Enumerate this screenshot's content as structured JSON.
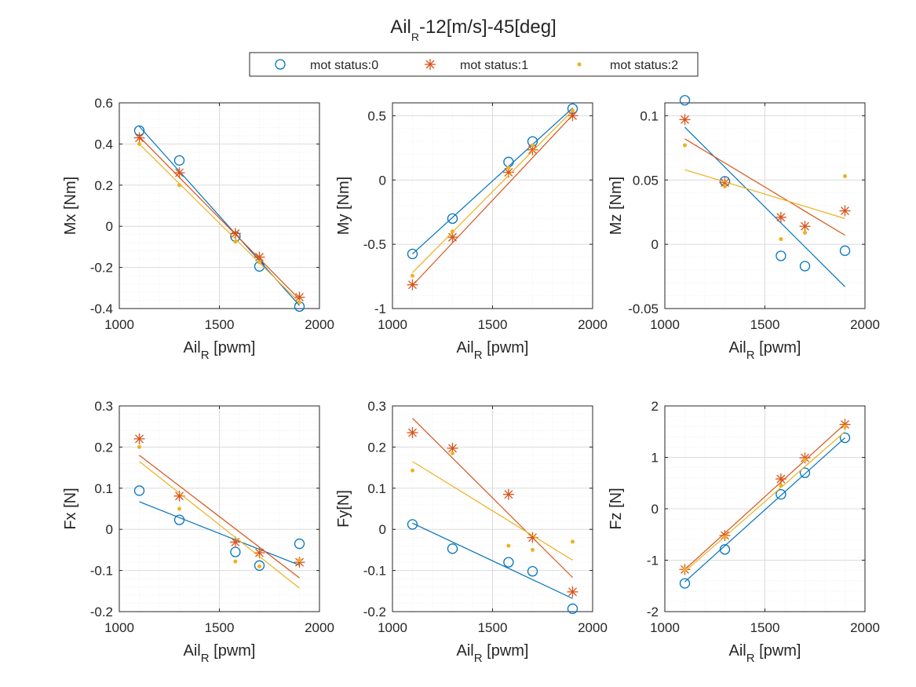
{
  "figure": {
    "title_main": "Ail",
    "title_sub": "R",
    "title_rest": "-12[m/s]-45[deg]"
  },
  "legend": {
    "entries": [
      "mot status:0",
      "mot status:1",
      "mot status:2"
    ]
  },
  "colors": {
    "s0": "#0072BD",
    "s1": "#D95319",
    "s2": "#EDB120",
    "grid_major": "#dcdcdc",
    "grid_minor": "#ececec",
    "axis": "#262626"
  },
  "chart_data": [
    {
      "type": "scatter",
      "ylabel": "Mx [Nm]",
      "xlabel_main": "Ail",
      "xlabel_sub": "R",
      "xlabel_rest": " [pwm]",
      "xlim": [
        1000,
        2000
      ],
      "ylim": [
        -0.4,
        0.6
      ],
      "xticks": [
        1000,
        1500,
        2000
      ],
      "yticks": [
        -0.4,
        -0.2,
        0,
        0.2,
        0.4,
        0.6
      ],
      "yticklabels": [
        "-0.4",
        "-0.2",
        "0",
        "0.2",
        "0.4",
        "0.6"
      ],
      "series": [
        {
          "x": [
            1100,
            1300,
            1580,
            1700,
            1900
          ],
          "y": [
            0.465,
            0.32,
            -0.05,
            -0.195,
            -0.39
          ],
          "fit": [
            [
              1100,
              0.485
            ],
            [
              1900,
              -0.385
            ]
          ]
        },
        {
          "x": [
            1100,
            1300,
            1580,
            1700,
            1900
          ],
          "y": [
            0.43,
            0.26,
            -0.035,
            -0.15,
            -0.345
          ],
          "fit": [
            [
              1100,
              0.435
            ],
            [
              1900,
              -0.355
            ]
          ]
        },
        {
          "x": [
            1100,
            1300,
            1580,
            1700,
            1900
          ],
          "y": [
            0.4,
            0.2,
            -0.075,
            -0.175,
            -0.37
          ],
          "fit": [
            [
              1100,
              0.4
            ],
            [
              1900,
              -0.37
            ]
          ]
        }
      ]
    },
    {
      "type": "scatter",
      "ylabel": "My [Nm]",
      "xlabel_main": "Ail",
      "xlabel_sub": "R",
      "xlabel_rest": " [pwm]",
      "xlim": [
        1000,
        2000
      ],
      "ylim": [
        -1,
        0.6
      ],
      "xticks": [
        1000,
        1500,
        2000
      ],
      "yticks": [
        -1,
        -0.5,
        0,
        0.5
      ],
      "yticklabels": [
        "-1",
        "-0.5",
        "0",
        "0.5"
      ],
      "series": [
        {
          "x": [
            1100,
            1300,
            1580,
            1700,
            1900
          ],
          "y": [
            -0.575,
            -0.3,
            0.14,
            0.3,
            0.555
          ],
          "fit": [
            [
              1100,
              -0.575
            ],
            [
              1900,
              0.56
            ]
          ]
        },
        {
          "x": [
            1100,
            1300,
            1580,
            1700,
            1900
          ],
          "y": [
            -0.815,
            -0.445,
            0.06,
            0.235,
            0.5
          ],
          "fit": [
            [
              1100,
              -0.82
            ],
            [
              1900,
              0.505
            ]
          ]
        },
        {
          "x": [
            1100,
            1300,
            1580,
            1700,
            1900
          ],
          "y": [
            -0.745,
            -0.4,
            0.095,
            0.27,
            0.54
          ],
          "fit": [
            [
              1100,
              -0.72
            ],
            [
              1900,
              0.54
            ]
          ]
        }
      ]
    },
    {
      "type": "scatter",
      "ylabel": "Mz [Nm]",
      "xlabel_main": "Ail",
      "xlabel_sub": "R",
      "xlabel_rest": " [pwm]",
      "xlim": [
        1000,
        2000
      ],
      "ylim": [
        -0.05,
        0.11
      ],
      "xticks": [
        1000,
        1500,
        2000
      ],
      "yticks": [
        -0.05,
        0,
        0.05,
        0.1
      ],
      "yticklabels": [
        "-0.05",
        "0",
        "0.05",
        "0.1"
      ],
      "series": [
        {
          "x": [
            1100,
            1300,
            1580,
            1700,
            1900
          ],
          "y": [
            0.112,
            0.049,
            -0.009,
            -0.017,
            -0.005
          ],
          "fit": [
            [
              1100,
              0.091
            ],
            [
              1900,
              -0.033
            ]
          ]
        },
        {
          "x": [
            1100,
            1300,
            1580,
            1700,
            1900
          ],
          "y": [
            0.097,
            0.048,
            0.021,
            0.014,
            0.026
          ],
          "fit": [
            [
              1100,
              0.082
            ],
            [
              1900,
              0.007
            ]
          ]
        },
        {
          "x": [
            1100,
            1300,
            1580,
            1700,
            1900
          ],
          "y": [
            0.077,
            0.045,
            0.004,
            0.009,
            0.053
          ],
          "fit": [
            [
              1100,
              0.058
            ],
            [
              1900,
              0.02
            ]
          ]
        }
      ]
    },
    {
      "type": "scatter",
      "ylabel": "Fx [N]",
      "xlabel_main": "Ail",
      "xlabel_sub": "R",
      "xlabel_rest": " [pwm]",
      "xlim": [
        1000,
        2000
      ],
      "ylim": [
        -0.2,
        0.3
      ],
      "xticks": [
        1000,
        1500,
        2000
      ],
      "yticks": [
        -0.2,
        -0.1,
        0,
        0.1,
        0.2,
        0.3
      ],
      "yticklabels": [
        "-0.2",
        "-0.1",
        "0",
        "0.1",
        "0.2",
        "0.3"
      ],
      "series": [
        {
          "x": [
            1100,
            1300,
            1580,
            1700,
            1900
          ],
          "y": [
            0.094,
            0.023,
            -0.055,
            -0.088,
            -0.035
          ],
          "fit": [
            [
              1100,
              0.067
            ],
            [
              1900,
              -0.087
            ]
          ]
        },
        {
          "x": [
            1100,
            1300,
            1580,
            1700,
            1900
          ],
          "y": [
            0.22,
            0.081,
            -0.031,
            -0.057,
            -0.08
          ],
          "fit": [
            [
              1100,
              0.18
            ],
            [
              1900,
              -0.118
            ]
          ]
        },
        {
          "x": [
            1100,
            1300,
            1580,
            1700,
            1900
          ],
          "y": [
            0.2,
            0.05,
            -0.078,
            -0.09,
            -0.075
          ],
          "fit": [
            [
              1100,
              0.165
            ],
            [
              1900,
              -0.143
            ]
          ]
        }
      ]
    },
    {
      "type": "scatter",
      "ylabel": "Fy[N]",
      "xlabel_main": "Ail",
      "xlabel_sub": "R",
      "xlabel_rest": " [pwm]",
      "xlim": [
        1000,
        2000
      ],
      "ylim": [
        -0.2,
        0.3
      ],
      "xticks": [
        1000,
        1500,
        2000
      ],
      "yticks": [
        -0.2,
        -0.1,
        0,
        0.1,
        0.2,
        0.3
      ],
      "yticklabels": [
        "-0.2",
        "-0.1",
        "0",
        "0.1",
        "0.2",
        "0.3"
      ],
      "series": [
        {
          "x": [
            1100,
            1300,
            1580,
            1700,
            1900
          ],
          "y": [
            0.012,
            -0.047,
            -0.08,
            -0.102,
            -0.193
          ],
          "fit": [
            [
              1100,
              0.015
            ],
            [
              1900,
              -0.168
            ]
          ]
        },
        {
          "x": [
            1100,
            1300,
            1580,
            1700,
            1900
          ],
          "y": [
            0.235,
            0.197,
            0.085,
            -0.02,
            -0.152
          ],
          "fit": [
            [
              1100,
              0.27
            ],
            [
              1900,
              -0.117
            ]
          ]
        },
        {
          "x": [
            1100,
            1300,
            1580,
            1700,
            1900
          ],
          "y": [
            0.143,
            0.185,
            -0.04,
            -0.05,
            -0.03
          ],
          "fit": [
            [
              1100,
              0.165
            ],
            [
              1900,
              -0.075
            ]
          ]
        }
      ]
    },
    {
      "type": "scatter",
      "ylabel": "Fz [N]",
      "xlabel_main": "Ail",
      "xlabel_sub": "R",
      "xlabel_rest": " [pwm]",
      "xlim": [
        1000,
        2000
      ],
      "ylim": [
        -2,
        2
      ],
      "xticks": [
        1000,
        1500,
        2000
      ],
      "yticks": [
        -2,
        -1,
        0,
        1,
        2
      ],
      "yticklabels": [
        "-2",
        "-1",
        "0",
        "1",
        "2"
      ],
      "series": [
        {
          "x": [
            1100,
            1300,
            1580,
            1700,
            1900
          ],
          "y": [
            -1.45,
            -0.79,
            0.28,
            0.7,
            1.38
          ],
          "fit": [
            [
              1100,
              -1.42
            ],
            [
              1900,
              1.38
            ]
          ]
        },
        {
          "x": [
            1100,
            1300,
            1580,
            1700,
            1900
          ],
          "y": [
            -1.18,
            -0.52,
            0.58,
            0.99,
            1.64
          ],
          "fit": [
            [
              1100,
              -1.18
            ],
            [
              1900,
              1.65
            ]
          ]
        },
        {
          "x": [
            1100,
            1300,
            1580,
            1700,
            1900
          ],
          "y": [
            -1.18,
            -0.55,
            0.45,
            0.95,
            1.6
          ],
          "fit": [
            [
              1100,
              -1.22
            ],
            [
              1900,
              1.5
            ]
          ]
        }
      ]
    }
  ]
}
